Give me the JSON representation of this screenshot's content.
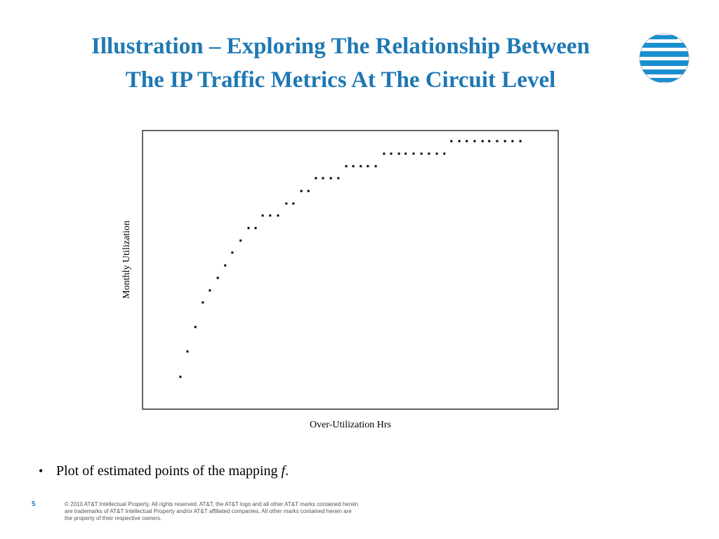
{
  "title_lines": [
    "Illustration – Exploring The Relationship Between",
    "The IP Traffic Metrics At The Circuit Level"
  ],
  "chart_data": {
    "type": "scatter",
    "x_label": "Over-Utilization Hrs",
    "y_label": "Monthly Utilization",
    "color": "#000000",
    "xlim": [
      0,
      100
    ],
    "ylim": [
      0,
      100
    ],
    "x": [
      9.1,
      10.8,
      12.7,
      14.5,
      16.2,
      18.1,
      19.9,
      21.6,
      23.6,
      25.5,
      27.2,
      28.9,
      30.7,
      32.6,
      34.6,
      36.3,
      38.2,
      39.9,
      41.7,
      43.4,
      45.3,
      47.1,
      49.0,
      50.7,
      52.5,
      54.2,
      56.1,
      58.1,
      59.8,
      61.7,
      63.3,
      65.2,
      67.1,
      68.9,
      70.8,
      72.6,
      74.3,
      76.2,
      78.0,
      79.9,
      81.8,
      83.4,
      85.3,
      87.2,
      89.0,
      90.9
    ],
    "values": [
      11.6,
      20.7,
      29.5,
      38.3,
      42.6,
      47.1,
      51.6,
      56.2,
      60.5,
      65.0,
      65.0,
      69.5,
      69.5,
      69.5,
      73.8,
      73.8,
      78.3,
      78.3,
      82.9,
      82.9,
      82.9,
      82.9,
      87.2,
      87.2,
      87.2,
      87.2,
      87.2,
      91.7,
      91.7,
      91.7,
      91.7,
      91.7,
      91.7,
      91.7,
      91.7,
      91.7,
      96.2,
      96.2,
      96.2,
      96.2,
      96.2,
      96.2,
      96.2,
      96.2,
      96.2,
      96.2
    ]
  },
  "bullet": {
    "text": "Plot of estimated points of the mapping ",
    "symbol": "f",
    "end": "."
  },
  "page_number": "5",
  "footer_lines": [
    "© 2010 AT&T Intellectual Property. All rights reserved. AT&T, the AT&T logo and all other AT&T marks contained herein",
    "are trademarks of AT&T Intellectual Property and/or AT&T affiliated companies. All other marks contained herein are",
    "the property of their respective owners."
  ]
}
